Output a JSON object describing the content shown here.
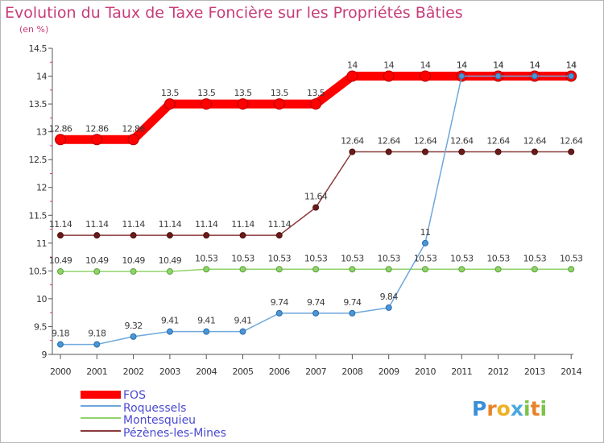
{
  "chart_data": {
    "type": "line",
    "title": "Evolution du Taux de Taxe Foncière sur les Propriétés Bâties",
    "subtitle": "(en %)",
    "xlabel": "",
    "ylabel": "",
    "categories": [
      "2000",
      "2001",
      "2002",
      "2003",
      "2004",
      "2005",
      "2006",
      "2007",
      "2008",
      "2009",
      "2010",
      "2011",
      "2012",
      "2013",
      "2014"
    ],
    "ylim": [
      9,
      14.5
    ],
    "yticks": [
      "9",
      "9.5",
      "10",
      "10.5",
      "11",
      "11.5",
      "12",
      "12.5",
      "13",
      "13.5",
      "14",
      "14.5"
    ],
    "grid": false,
    "legend_position": "bottom-left",
    "series": [
      {
        "name": "FOS",
        "color": "#ff0000",
        "values": [
          12.86,
          12.86,
          12.86,
          13.5,
          13.5,
          13.5,
          13.5,
          13.5,
          14,
          14,
          14,
          14,
          14,
          14,
          14
        ],
        "labels": [
          "12.86",
          "12.86",
          "12.86",
          "13.5",
          "13.5",
          "13.5",
          "13.5",
          "13.5",
          "14",
          "14",
          "14",
          "14",
          "14",
          "14",
          "14"
        ]
      },
      {
        "name": "Roquessels",
        "color": "#6fa8dc",
        "values": [
          9.18,
          9.18,
          9.32,
          9.41,
          9.41,
          9.41,
          9.74,
          9.74,
          9.74,
          9.84,
          11,
          14,
          14,
          14,
          14
        ],
        "labels": [
          "9.18",
          "9.18",
          "9.32",
          "9.41",
          "9.41",
          "9.41",
          "9.74",
          "9.74",
          "9.74",
          "9.84",
          "11",
          "14",
          "14",
          "14",
          "14"
        ]
      },
      {
        "name": "Montesquieu",
        "color": "#8fd36a",
        "values": [
          10.49,
          10.49,
          10.49,
          10.49,
          10.53,
          10.53,
          10.53,
          10.53,
          10.53,
          10.53,
          10.53,
          10.53,
          10.53,
          10.53,
          10.53
        ],
        "labels": [
          "10.49",
          "10.49",
          "10.49",
          "10.49",
          "10.53",
          "10.53",
          "10.53",
          "10.53",
          "10.53",
          "10.53",
          "10.53",
          "10.53",
          "10.53",
          "10.53",
          "10.53"
        ]
      },
      {
        "name": "Pézènes-les-Mines",
        "color": "#8b3a3a",
        "values": [
          11.14,
          11.14,
          11.14,
          11.14,
          11.14,
          11.14,
          11.14,
          11.64,
          12.64,
          12.64,
          12.64,
          12.64,
          12.64,
          12.64,
          12.64
        ],
        "labels": [
          "11.14",
          "11.14",
          "11.14",
          "11.14",
          "11.14",
          "11.14",
          "11.14",
          "11.64",
          "12.64",
          "12.64",
          "12.64",
          "12.64",
          "12.64",
          "12.64",
          "12.64"
        ]
      }
    ]
  },
  "logo": {
    "letters": [
      "P",
      "r",
      "o",
      "x",
      "i",
      "t",
      "i"
    ],
    "colors": [
      "#3a8fd6",
      "#e8822a",
      "#f0b020",
      "#4aa8e0",
      "#7cc34a",
      "#e8822a",
      "#7cc34a"
    ]
  }
}
